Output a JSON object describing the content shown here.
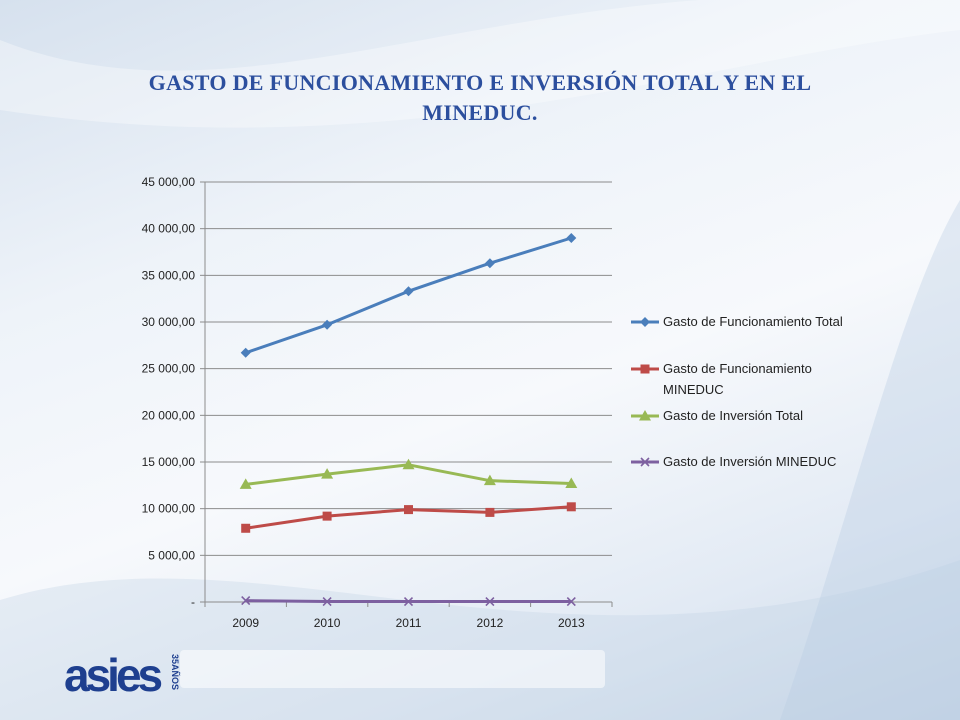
{
  "slide": {
    "title_line1": "GASTO DE FUNCIONAMIENTO E INVERSIÓN TOTAL Y EN EL",
    "title_line2": "MINEDUC."
  },
  "logo": {
    "text": "asies",
    "badge": "35AÑOS"
  },
  "colors": {
    "title": "#2c4f9e",
    "logo": "#1e3f8f"
  },
  "chart_data": {
    "type": "line",
    "categories": [
      "2009",
      "2010",
      "2011",
      "2012",
      "2013"
    ],
    "ylim": [
      0,
      45000
    ],
    "yticks": [
      0,
      5000,
      10000,
      15000,
      20000,
      25000,
      30000,
      35000,
      40000,
      45000
    ],
    "ytick_labels": [
      "-",
      "5 000,00",
      "10 000,00",
      "15 000,00",
      "20 000,00",
      "25 000,00",
      "30 000,00",
      "35 000,00",
      "40 000,00",
      "45 000,00"
    ],
    "grid": true,
    "legend": "right",
    "series": [
      {
        "name": "Gasto de Funcionamiento Total",
        "legend_lines": [
          "Gasto de Funcionamiento Total"
        ],
        "color": "#4a7ebb",
        "marker": "diamond",
        "values": [
          26700,
          29700,
          33300,
          36300,
          39000
        ]
      },
      {
        "name": "Gasto de Funcionamiento MINEDUC",
        "legend_lines": [
          "Gasto de Funcionamiento",
          "MINEDUC"
        ],
        "color": "#be4b48",
        "marker": "square",
        "values": [
          7900,
          9200,
          9900,
          9600,
          10200
        ]
      },
      {
        "name": "Gasto de Inversión Total",
        "legend_lines": [
          "Gasto de Inversión Total"
        ],
        "color": "#98b954",
        "marker": "triangle",
        "values": [
          12600,
          13700,
          14700,
          13000,
          12700
        ]
      },
      {
        "name": "Gasto de Inversión MINEDUC",
        "legend_lines": [
          "Gasto de Inversión MINEDUC"
        ],
        "color": "#7d60a0",
        "marker": "x",
        "values": [
          150,
          50,
          50,
          50,
          50
        ]
      }
    ]
  }
}
